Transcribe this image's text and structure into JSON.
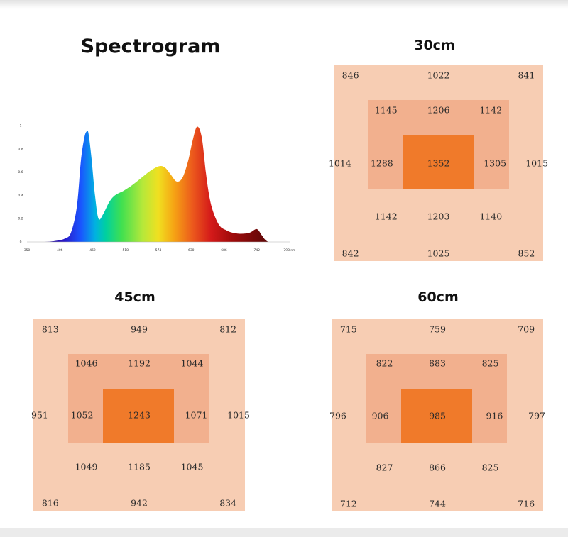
{
  "spectrogram": {
    "title": "Spectrogram"
  },
  "chart_data": [
    {
      "type": "area",
      "title": "Spectrogram",
      "xlabel": "nm",
      "ylabel": "",
      "xlim": [
        350,
        798
      ],
      "ylim": [
        0,
        1
      ],
      "x_ticks": [
        "350",
        "406",
        "462",
        "518",
        "574",
        "630",
        "686",
        "742",
        "798 nm"
      ],
      "y_ticks": [
        "0",
        "0.2",
        "0.4",
        "0.6",
        "0.8",
        "1"
      ],
      "x": [
        350,
        380,
        400,
        415,
        425,
        435,
        442,
        448,
        452,
        455,
        460,
        466,
        472,
        480,
        490,
        500,
        515,
        530,
        545,
        560,
        575,
        585,
        595,
        605,
        615,
        625,
        632,
        640,
        648,
        655,
        660,
        665,
        672,
        680,
        690,
        700,
        715,
        730,
        742,
        750,
        756,
        762,
        770,
        780,
        798
      ],
      "values": [
        0.0,
        0.0,
        0.01,
        0.03,
        0.08,
        0.3,
        0.7,
        0.9,
        0.95,
        0.93,
        0.72,
        0.4,
        0.2,
        0.24,
        0.34,
        0.4,
        0.44,
        0.49,
        0.55,
        0.61,
        0.65,
        0.64,
        0.58,
        0.52,
        0.55,
        0.7,
        0.86,
        0.99,
        0.9,
        0.6,
        0.42,
        0.3,
        0.2,
        0.13,
        0.1,
        0.08,
        0.07,
        0.08,
        0.11,
        0.06,
        0.02,
        0.0,
        0.0,
        0.0,
        0.0
      ]
    },
    {
      "type": "heatmap",
      "title": "30cm",
      "values": [
        [
          "846",
          "1022",
          "841"
        ],
        [
          "1145",
          "1206",
          "1142"
        ],
        [
          "1014",
          "1288",
          "1352",
          "1305",
          "1015"
        ],
        [
          "1142",
          "1203",
          "1140"
        ],
        [
          "842",
          "1025",
          "852"
        ]
      ]
    },
    {
      "type": "heatmap",
      "title": "45cm",
      "values": [
        [
          "813",
          "949",
          "812"
        ],
        [
          "1046",
          "1192",
          "1044"
        ],
        [
          "951",
          "1052",
          "1243",
          "1071",
          "1015"
        ],
        [
          "1049",
          "1185",
          "1045"
        ],
        [
          "816",
          "942",
          "834"
        ]
      ]
    },
    {
      "type": "heatmap",
      "title": "60cm",
      "values": [
        [
          "715",
          "759",
          "709"
        ],
        [
          "822",
          "883",
          "825"
        ],
        [
          "796",
          "906",
          "985",
          "916",
          "797"
        ],
        [
          "827",
          "866",
          "825"
        ],
        [
          "712",
          "744",
          "716"
        ]
      ]
    }
  ]
}
